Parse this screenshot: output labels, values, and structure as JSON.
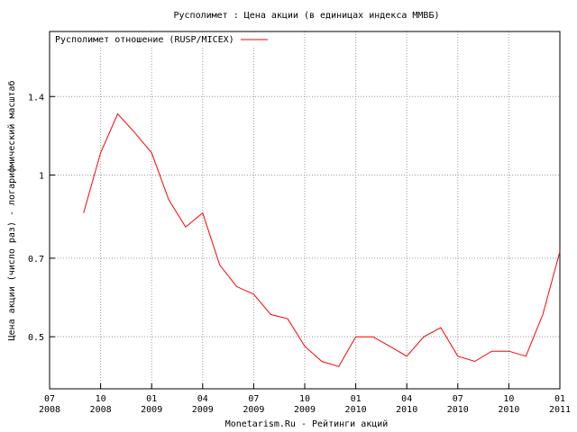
{
  "chart_data": {
    "type": "line",
    "title": "Русполимет : Цена акции (в единицах индекса ММВБ)",
    "xlabel": "Monetarism.Ru - Рейтинги акций",
    "ylabel": "Цена акции (число раз) - логарифмический масштаб",
    "log_y": true,
    "grid": true,
    "legend": "top-left",
    "x": [
      "2008-09",
      "2008-10",
      "2008-11",
      "2008-12",
      "2009-01",
      "2009-02",
      "2009-03",
      "2009-04",
      "2009-05",
      "2009-06",
      "2009-07",
      "2009-08",
      "2009-09",
      "2009-10",
      "2009-11",
      "2009-12",
      "2010-01",
      "2010-02",
      "2010-03",
      "2010-04",
      "2010-05",
      "2010-06",
      "2010-07",
      "2010-08",
      "2010-09",
      "2010-10",
      "2010-11",
      "2010-12",
      "2011-01"
    ],
    "series": [
      {
        "name": "Русполимет отношение (RUSP/MICEX)",
        "color": "#ff0000",
        "values": [
          0.85,
          1.1,
          1.3,
          1.2,
          1.1,
          0.9,
          0.8,
          0.85,
          0.68,
          0.62,
          0.6,
          0.55,
          0.54,
          0.48,
          0.45,
          0.44,
          0.5,
          0.5,
          0.48,
          0.46,
          0.5,
          0.52,
          0.46,
          0.45,
          0.47,
          0.47,
          0.46,
          0.55,
          0.72
        ]
      }
    ],
    "xlim": [
      "2008-07",
      "2011-01"
    ],
    "xticks": [
      {
        "value": "2008-07",
        "label": "07\n2008"
      },
      {
        "value": "2008-10",
        "label": "10\n2008"
      },
      {
        "value": "2009-01",
        "label": "01\n2009"
      },
      {
        "value": "2009-04",
        "label": "04\n2009"
      },
      {
        "value": "2009-07",
        "label": "07\n2009"
      },
      {
        "value": "2009-10",
        "label": "10\n2009"
      },
      {
        "value": "2010-01",
        "label": "01\n2010"
      },
      {
        "value": "2010-04",
        "label": "04\n2010"
      },
      {
        "value": "2010-07",
        "label": "07\n2010"
      },
      {
        "value": "2010-10",
        "label": "10\n2010"
      },
      {
        "value": "2011-01",
        "label": "01\n2011"
      }
    ],
    "ylim": [
      0.4,
      1.85
    ],
    "yticks": [
      0.5,
      0.7,
      1,
      1.4
    ]
  }
}
